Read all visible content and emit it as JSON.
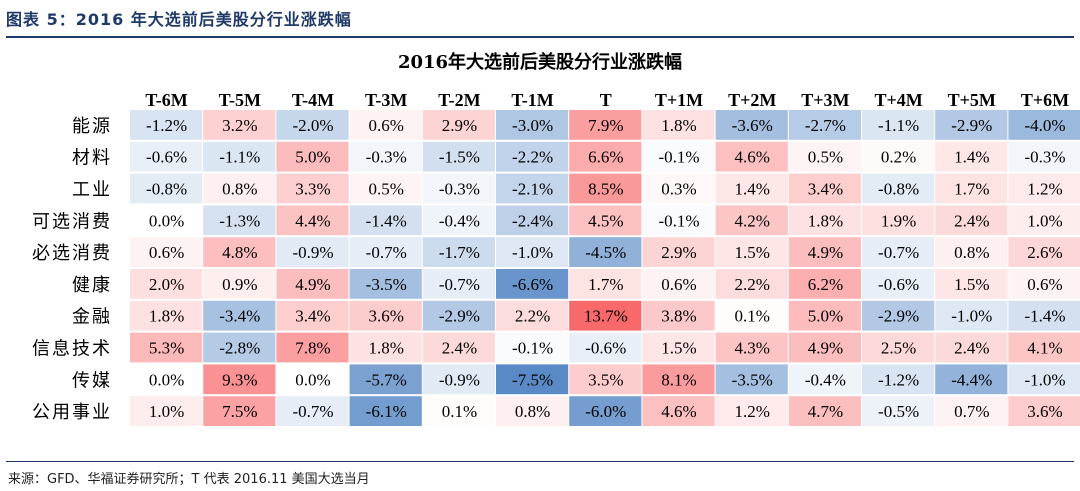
{
  "figure_title": "图表 5：2016 年大选前后美股分行业涨跌幅",
  "source_note": "来源：GFD、华福证券研究所；T 代表 2016.11 美国大选当月",
  "chart_data": {
    "type": "heatmap",
    "title": "2016年大选前后美股分行业涨跌幅",
    "columns": [
      "T-6M",
      "T-5M",
      "T-4M",
      "T-3M",
      "T-2M",
      "T-1M",
      "T",
      "T+1M",
      "T+2M",
      "T+3M",
      "T+4M",
      "T+5M",
      "T+6M"
    ],
    "rows": [
      "能源",
      "材料",
      "工业",
      "可选消费",
      "必选消费",
      "健康",
      "金融",
      "信息技术",
      "传媒",
      "公用事业"
    ],
    "values": [
      [
        -1.2,
        3.2,
        -2.0,
        0.6,
        2.9,
        -3.0,
        7.9,
        1.8,
        -3.6,
        -2.7,
        -1.1,
        -2.9,
        -4.0
      ],
      [
        -0.6,
        -1.1,
        5.0,
        -0.3,
        -1.5,
        -2.2,
        6.6,
        -0.1,
        4.6,
        0.5,
        0.2,
        1.4,
        -0.3
      ],
      [
        -0.8,
        0.8,
        3.3,
        0.5,
        -0.3,
        -2.1,
        8.5,
        0.3,
        1.4,
        3.4,
        -0.8,
        1.7,
        1.2
      ],
      [
        0.0,
        -1.3,
        4.4,
        -1.4,
        -0.4,
        -2.4,
        4.5,
        -0.1,
        4.2,
        1.8,
        1.9,
        2.4,
        1.0
      ],
      [
        0.6,
        4.8,
        -0.9,
        -0.7,
        -1.7,
        -1.0,
        -4.5,
        2.9,
        1.5,
        4.9,
        -0.7,
        0.8,
        2.6
      ],
      [
        2.0,
        0.9,
        4.9,
        -3.5,
        -0.7,
        -6.6,
        1.7,
        0.6,
        2.2,
        6.2,
        -0.6,
        1.5,
        0.6
      ],
      [
        1.8,
        -3.4,
        3.4,
        3.6,
        -2.9,
        2.2,
        13.7,
        3.8,
        0.1,
        5.0,
        -2.9,
        -1.0,
        -1.4
      ],
      [
        5.3,
        -2.8,
        7.8,
        1.8,
        2.4,
        -0.1,
        -0.6,
        1.5,
        4.3,
        4.9,
        2.5,
        2.4,
        4.1
      ],
      [
        0.0,
        9.3,
        0.0,
        -5.7,
        -0.9,
        -7.5,
        3.5,
        8.1,
        -3.5,
        -0.4,
        -1.2,
        -4.4,
        -1.0
      ],
      [
        1.0,
        7.5,
        -0.7,
        -6.1,
        0.1,
        0.8,
        -6.0,
        4.6,
        1.2,
        4.7,
        -0.5,
        0.7,
        3.6
      ]
    ],
    "unit": "%",
    "colors": {
      "positive": "#f8696b",
      "negative": "#5a8ac6",
      "neutral": "#ffffff"
    }
  }
}
